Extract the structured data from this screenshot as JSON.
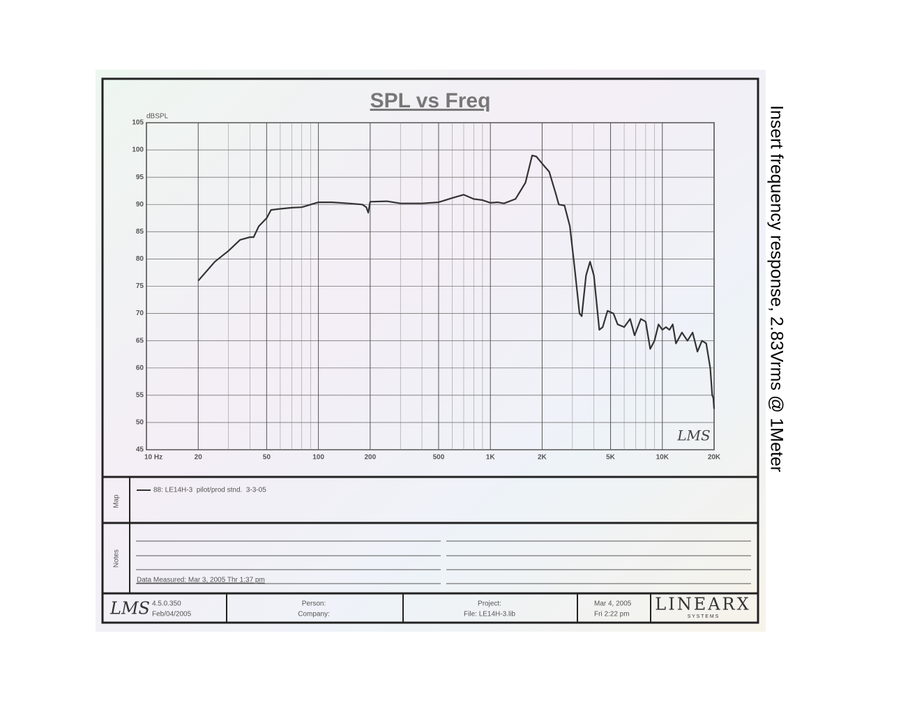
{
  "chart_data": {
    "type": "line",
    "title": "SPL vs Freq",
    "ylabel": "dBSPL",
    "watermark": "LMS",
    "xscale": "log",
    "grid": true,
    "x": [
      20,
      25,
      30,
      35,
      40,
      42,
      45,
      50,
      53,
      60,
      70,
      80,
      100,
      120,
      150,
      180,
      190,
      195,
      200,
      250,
      300,
      400,
      500,
      600,
      700,
      800,
      900,
      1000,
      1100,
      1200,
      1400,
      1600,
      1750,
      1850,
      2000,
      2200,
      2400,
      2500,
      2700,
      2900,
      3100,
      3300,
      3400,
      3600,
      3800,
      4000,
      4300,
      4500,
      4800,
      5200,
      5500,
      6000,
      6500,
      6900,
      7500,
      8000,
      8500,
      9000,
      9500,
      10000,
      10500,
      11000,
      11500,
      12000,
      13000,
      14000,
      15000,
      16000,
      17000,
      18000,
      19000,
      19500,
      19800,
      20000
    ],
    "series": [
      {
        "name": "88: LE14H-3  pilot/prod stnd.  3-3-05",
        "color": "#333333",
        "values": [
          76,
          79.5,
          81.5,
          83.5,
          84,
          84,
          86,
          87.5,
          89,
          89.2,
          89.4,
          89.5,
          90.4,
          90.4,
          90.2,
          90,
          89.5,
          88.5,
          90.5,
          90.6,
          90.2,
          90.2,
          90.4,
          91.2,
          91.8,
          91,
          90.8,
          90.3,
          90.4,
          90.2,
          91,
          94,
          99,
          98.8,
          97.5,
          96,
          92,
          90,
          89.8,
          86,
          78,
          70,
          69.5,
          77,
          79.5,
          77,
          67,
          67.5,
          70.5,
          70,
          68,
          67.5,
          69,
          66,
          69,
          68.5,
          63.5,
          65,
          68,
          67,
          67.5,
          67,
          68,
          64.5,
          66.5,
          65,
          66.5,
          63,
          65,
          64.5,
          60,
          55,
          54.5,
          52.5
        ]
      }
    ],
    "xlim": [
      10,
      20000
    ],
    "ylim": [
      45,
      105
    ],
    "xticks": [
      {
        "value": 10,
        "label": "10  Hz"
      },
      20,
      50,
      100,
      200,
      500,
      {
        "value": 1000,
        "label": "1K"
      },
      {
        "value": 2000,
        "label": "2K"
      },
      {
        "value": 5000,
        "label": "5K"
      },
      {
        "value": 10000,
        "label": "10K"
      },
      {
        "value": 20000,
        "label": "20K"
      }
    ],
    "xgrid": [
      30,
      40,
      60,
      70,
      80,
      90,
      300,
      400,
      600,
      700,
      800,
      900,
      3000,
      4000,
      6000,
      7000,
      8000,
      9000
    ],
    "yticks": [
      45,
      50,
      55,
      60,
      65,
      70,
      75,
      80,
      85,
      90,
      95,
      100,
      105
    ]
  },
  "side_note": "Insert frequency response, 2.83Vrms @ 1Meter",
  "map_label": "Map",
  "notes_label": "Notes",
  "notes_text": "Data Measured: Mar  3, 2005  Thr  1:37 pm",
  "footer": {
    "logo": "LMS",
    "version": "4.5.0.350",
    "build_date": "Feb/04/2005",
    "person": "Person:",
    "company": "Company:",
    "project": "Project:",
    "file": "File: LE14H-3.lib",
    "date": "Mar  4, 2005",
    "time": "Fri  2:22 pm",
    "brand": "LINEARX",
    "brand_sub": "S Y S T E M S"
  }
}
